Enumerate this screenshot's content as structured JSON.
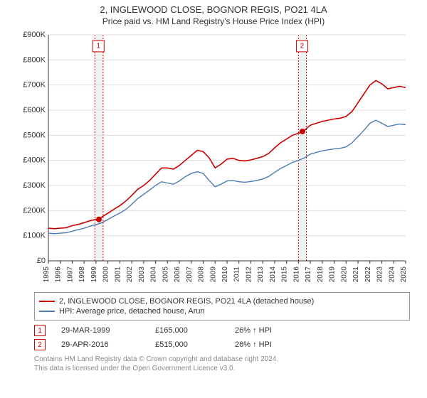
{
  "title": "2, INGLEWOOD CLOSE, BOGNOR REGIS, PO21 4LA",
  "subtitle": "Price paid vs. HM Land Registry's House Price Index (HPI)",
  "chart": {
    "type": "line",
    "background_color": "#ffffff",
    "grid_color": "#dddddd",
    "axis_color": "#333333",
    "band_fill": "#f2f2f2",
    "band_border_color": "#cc0000",
    "x": {
      "min": 1995,
      "max": 2025,
      "ticks": [
        1995,
        1996,
        1997,
        1998,
        1999,
        2000,
        2001,
        2002,
        2003,
        2004,
        2005,
        2006,
        2007,
        2008,
        2009,
        2010,
        2011,
        2012,
        2013,
        2014,
        2015,
        2016,
        2017,
        2018,
        2019,
        2020,
        2021,
        2022,
        2023,
        2024,
        2025
      ],
      "label_font_size": 10
    },
    "y": {
      "min": 0,
      "max": 900000,
      "ticks": [
        0,
        100000,
        200000,
        300000,
        400000,
        500000,
        600000,
        700000,
        800000,
        900000
      ],
      "labels": [
        "£0",
        "£100K",
        "£200K",
        "£300K",
        "£400K",
        "£500K",
        "£600K",
        "£700K",
        "£800K",
        "£900K"
      ],
      "label_font_size": 11
    },
    "series": [
      {
        "name": "2, INGLEWOOD CLOSE, BOGNOR REGIS, PO21 4LA (detached house)",
        "color": "#cc0000",
        "line_width": 1.6,
        "points": [
          [
            1995.0,
            130000
          ],
          [
            1995.5,
            128000
          ],
          [
            1996.0,
            130000
          ],
          [
            1996.5,
            132000
          ],
          [
            1997.0,
            140000
          ],
          [
            1997.5,
            145000
          ],
          [
            1998.0,
            152000
          ],
          [
            1998.5,
            160000
          ],
          [
            1999.0,
            165000
          ],
          [
            1999.24,
            165000
          ],
          [
            1999.5,
            175000
          ],
          [
            2000.0,
            190000
          ],
          [
            2000.5,
            205000
          ],
          [
            2001.0,
            220000
          ],
          [
            2001.5,
            238000
          ],
          [
            2002.0,
            260000
          ],
          [
            2002.5,
            285000
          ],
          [
            2003.0,
            300000
          ],
          [
            2003.5,
            320000
          ],
          [
            2004.0,
            345000
          ],
          [
            2004.5,
            370000
          ],
          [
            2005.0,
            370000
          ],
          [
            2005.5,
            365000
          ],
          [
            2006.0,
            380000
          ],
          [
            2006.5,
            400000
          ],
          [
            2007.0,
            420000
          ],
          [
            2007.5,
            440000
          ],
          [
            2008.0,
            435000
          ],
          [
            2008.5,
            410000
          ],
          [
            2009.0,
            370000
          ],
          [
            2009.5,
            385000
          ],
          [
            2010.0,
            405000
          ],
          [
            2010.5,
            408000
          ],
          [
            2011.0,
            400000
          ],
          [
            2011.5,
            398000
          ],
          [
            2012.0,
            402000
          ],
          [
            2012.5,
            408000
          ],
          [
            2013.0,
            415000
          ],
          [
            2013.5,
            428000
          ],
          [
            2014.0,
            450000
          ],
          [
            2014.5,
            470000
          ],
          [
            2015.0,
            485000
          ],
          [
            2015.5,
            500000
          ],
          [
            2016.0,
            508000
          ],
          [
            2016.33,
            515000
          ],
          [
            2016.5,
            520000
          ],
          [
            2017.0,
            540000
          ],
          [
            2017.5,
            548000
          ],
          [
            2018.0,
            555000
          ],
          [
            2018.5,
            560000
          ],
          [
            2019.0,
            565000
          ],
          [
            2019.5,
            568000
          ],
          [
            2020.0,
            575000
          ],
          [
            2020.5,
            595000
          ],
          [
            2021.0,
            630000
          ],
          [
            2021.5,
            665000
          ],
          [
            2022.0,
            700000
          ],
          [
            2022.5,
            718000
          ],
          [
            2023.0,
            705000
          ],
          [
            2023.5,
            685000
          ],
          [
            2024.0,
            690000
          ],
          [
            2024.5,
            695000
          ],
          [
            2025.0,
            690000
          ]
        ]
      },
      {
        "name": "HPI: Average price, detached house, Arun",
        "color": "#4a7bb5",
        "line_width": 1.4,
        "points": [
          [
            1995.0,
            110000
          ],
          [
            1995.5,
            108000
          ],
          [
            1996.0,
            110000
          ],
          [
            1996.5,
            112000
          ],
          [
            1997.0,
            118000
          ],
          [
            1997.5,
            124000
          ],
          [
            1998.0,
            130000
          ],
          [
            1998.5,
            138000
          ],
          [
            1999.0,
            144000
          ],
          [
            1999.5,
            152000
          ],
          [
            2000.0,
            165000
          ],
          [
            2000.5,
            178000
          ],
          [
            2001.0,
            190000
          ],
          [
            2001.5,
            205000
          ],
          [
            2002.0,
            225000
          ],
          [
            2002.5,
            248000
          ],
          [
            2003.0,
            265000
          ],
          [
            2003.5,
            282000
          ],
          [
            2004.0,
            300000
          ],
          [
            2004.5,
            315000
          ],
          [
            2005.0,
            310000
          ],
          [
            2005.5,
            305000
          ],
          [
            2006.0,
            318000
          ],
          [
            2006.5,
            335000
          ],
          [
            2007.0,
            348000
          ],
          [
            2007.5,
            355000
          ],
          [
            2008.0,
            348000
          ],
          [
            2008.5,
            320000
          ],
          [
            2009.0,
            295000
          ],
          [
            2009.5,
            305000
          ],
          [
            2010.0,
            318000
          ],
          [
            2010.5,
            320000
          ],
          [
            2011.0,
            315000
          ],
          [
            2011.5,
            313000
          ],
          [
            2012.0,
            316000
          ],
          [
            2012.5,
            320000
          ],
          [
            2013.0,
            326000
          ],
          [
            2013.5,
            336000
          ],
          [
            2014.0,
            352000
          ],
          [
            2014.5,
            368000
          ],
          [
            2015.0,
            380000
          ],
          [
            2015.5,
            392000
          ],
          [
            2016.0,
            400000
          ],
          [
            2016.5,
            410000
          ],
          [
            2017.0,
            425000
          ],
          [
            2017.5,
            432000
          ],
          [
            2018.0,
            438000
          ],
          [
            2018.5,
            442000
          ],
          [
            2019.0,
            446000
          ],
          [
            2019.5,
            448000
          ],
          [
            2020.0,
            454000
          ],
          [
            2020.5,
            470000
          ],
          [
            2021.0,
            495000
          ],
          [
            2021.5,
            520000
          ],
          [
            2022.0,
            548000
          ],
          [
            2022.5,
            560000
          ],
          [
            2023.0,
            548000
          ],
          [
            2023.5,
            535000
          ],
          [
            2024.0,
            540000
          ],
          [
            2024.5,
            545000
          ],
          [
            2025.0,
            542000
          ]
        ]
      }
    ],
    "markers": [
      {
        "n": "1",
        "x": 1999.24,
        "y": 165000,
        "band": [
          1998.9,
          1999.6
        ],
        "box_x": 1999.2,
        "box_y": 855000
      },
      {
        "n": "2",
        "x": 2016.33,
        "y": 515000,
        "band": [
          2016.0,
          2016.66
        ],
        "box_x": 2016.3,
        "box_y": 855000
      }
    ]
  },
  "legend": [
    {
      "color": "#cc0000",
      "label": "2, INGLEWOOD CLOSE, BOGNOR REGIS, PO21 4LA (detached house)"
    },
    {
      "color": "#4a7bb5",
      "label": "HPI: Average price, detached house, Arun"
    }
  ],
  "marker_rows": [
    {
      "n": "1",
      "date": "29-MAR-1999",
      "price": "£165,000",
      "hpi": "26% ↑ HPI"
    },
    {
      "n": "2",
      "date": "29-APR-2016",
      "price": "£515,000",
      "hpi": "26% ↑ HPI"
    }
  ],
  "footer": {
    "l1": "Contains HM Land Registry data © Crown copyright and database right 2024.",
    "l2": "This data is licensed under the Open Government Licence v3.0."
  }
}
